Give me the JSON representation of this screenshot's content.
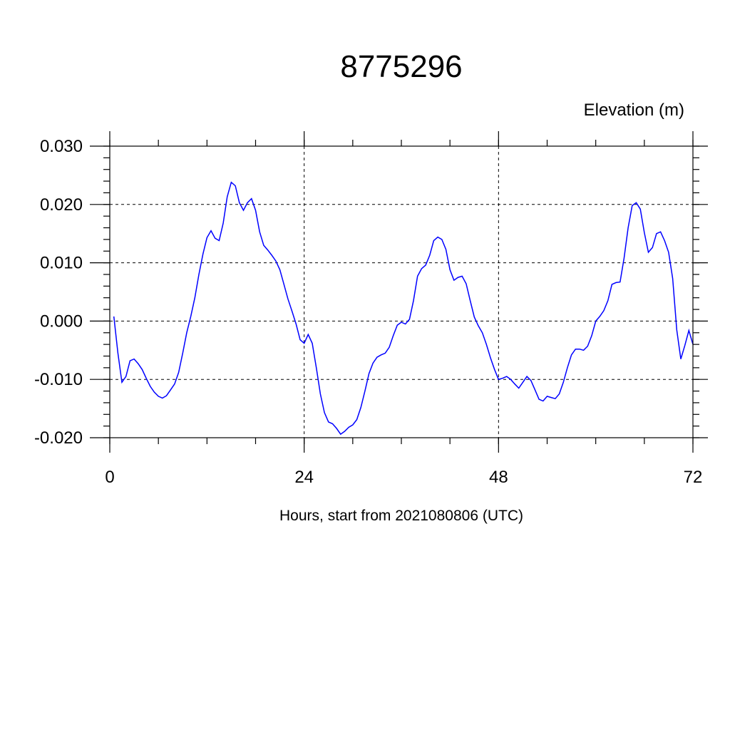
{
  "chart_data": {
    "type": "line",
    "title": "8775296",
    "ylabel": "Elevation (m)",
    "xlabel": "Hours, start from 2021080806 (UTC)",
    "xlim": [
      0,
      72
    ],
    "ylim": [
      -0.02,
      0.03
    ],
    "x_ticks": [
      0,
      24,
      48,
      72
    ],
    "x_tick_labels": [
      "0",
      "24",
      "48",
      "72"
    ],
    "y_ticks": [
      -0.02,
      -0.01,
      0.0,
      0.01,
      0.02,
      0.03
    ],
    "y_tick_labels": [
      "-0.020",
      "-0.010",
      "0.000",
      "0.010",
      "0.020",
      "0.030"
    ],
    "grid": true,
    "line_color": "#0000ff",
    "series": [
      {
        "x": [
          0.5,
          1.0,
          1.5,
          2.0,
          2.5,
          3.0,
          3.5,
          4.0,
          4.5,
          5.0,
          5.5,
          6.0,
          6.5,
          7.0,
          7.5,
          8.0,
          8.5,
          9.0,
          9.5,
          10.0,
          10.5,
          11.0,
          11.5,
          12.0,
          12.5,
          13.0,
          13.5,
          14.0,
          14.5,
          15.0,
          15.5,
          16.0,
          16.5,
          17.0,
          17.5,
          18.0,
          18.5,
          19.0,
          19.5,
          20.0,
          20.5,
          21.0,
          21.5,
          22.0,
          22.5,
          23.0,
          23.5,
          24.0,
          24.5,
          25.0,
          25.5,
          26.0,
          26.5,
          27.0,
          27.5,
          28.0,
          28.5,
          29.0,
          29.5,
          30.0,
          30.5,
          31.0,
          31.5,
          32.0,
          32.5,
          33.0,
          33.5,
          34.0,
          34.5,
          35.0,
          35.5,
          36.0,
          36.5,
          37.0,
          37.5,
          38.0,
          38.5,
          39.0,
          39.5,
          40.0,
          40.5,
          41.0,
          41.5,
          42.0,
          42.5,
          43.0,
          43.5,
          44.0,
          44.5,
          45.0,
          45.5,
          46.0,
          46.5,
          47.0,
          47.5,
          48.0,
          48.5,
          49.0,
          49.5,
          50.0,
          50.5,
          51.0,
          51.5,
          52.0,
          52.5,
          53.0,
          53.5,
          54.0,
          54.5,
          55.0,
          55.5,
          56.0,
          56.5,
          57.0,
          57.5,
          58.0,
          58.5,
          59.0,
          59.5,
          60.0,
          60.5,
          61.0,
          61.5,
          62.0,
          62.5,
          63.0,
          63.5,
          64.0,
          64.5,
          65.0,
          65.5,
          66.0,
          66.5,
          67.0,
          67.5,
          68.0,
          68.5,
          69.0,
          69.5,
          70.0,
          70.5,
          71.0,
          71.5,
          72.0
        ],
        "y": [
          0.0008,
          -0.0055,
          -0.0105,
          -0.0095,
          -0.0068,
          -0.0065,
          -0.0073,
          -0.0083,
          -0.0098,
          -0.0112,
          -0.0122,
          -0.0129,
          -0.0132,
          -0.0128,
          -0.0118,
          -0.0108,
          -0.0088,
          -0.0055,
          -0.002,
          0.0008,
          0.004,
          0.008,
          0.0115,
          0.0143,
          0.0155,
          0.0142,
          0.0138,
          0.0168,
          0.0213,
          0.0238,
          0.0232,
          0.0203,
          0.019,
          0.0203,
          0.021,
          0.019,
          0.0153,
          0.013,
          0.0122,
          0.0113,
          0.0103,
          0.0088,
          0.0063,
          0.0038,
          0.0017,
          -0.0005,
          -0.0032,
          -0.0038,
          -0.0023,
          -0.0038,
          -0.008,
          -0.0125,
          -0.0157,
          -0.0173,
          -0.0176,
          -0.0184,
          -0.0194,
          -0.0189,
          -0.0182,
          -0.0178,
          -0.0169,
          -0.0148,
          -0.012,
          -0.009,
          -0.0072,
          -0.0062,
          -0.0058,
          -0.0055,
          -0.0045,
          -0.0025,
          -0.0007,
          -0.0002,
          -0.0005,
          0.0003,
          0.0035,
          0.0077,
          0.009,
          0.0096,
          0.0113,
          0.0138,
          0.0144,
          0.014,
          0.0123,
          0.0088,
          0.007,
          0.0075,
          0.0077,
          0.0064,
          0.0035,
          0.0007,
          -0.0008,
          -0.002,
          -0.004,
          -0.0063,
          -0.0083,
          -0.01,
          -0.0098,
          -0.0095,
          -0.01,
          -0.0108,
          -0.0115,
          -0.0105,
          -0.0095,
          -0.0102,
          -0.0118,
          -0.0134,
          -0.0137,
          -0.0129,
          -0.0131,
          -0.0133,
          -0.0125,
          -0.0105,
          -0.008,
          -0.0058,
          -0.0048,
          -0.0048,
          -0.005,
          -0.0043,
          -0.0025,
          0.0,
          0.0008,
          0.0018,
          0.0035,
          0.0063,
          0.0066,
          0.0067,
          0.0108,
          0.016,
          0.0198,
          0.0203,
          0.0192,
          0.0152,
          0.0118,
          0.0126,
          0.015,
          0.0153,
          0.0138,
          0.0118,
          0.0073,
          -0.0015,
          -0.0065,
          -0.0042,
          -0.0016,
          -0.004
        ]
      }
    ]
  }
}
